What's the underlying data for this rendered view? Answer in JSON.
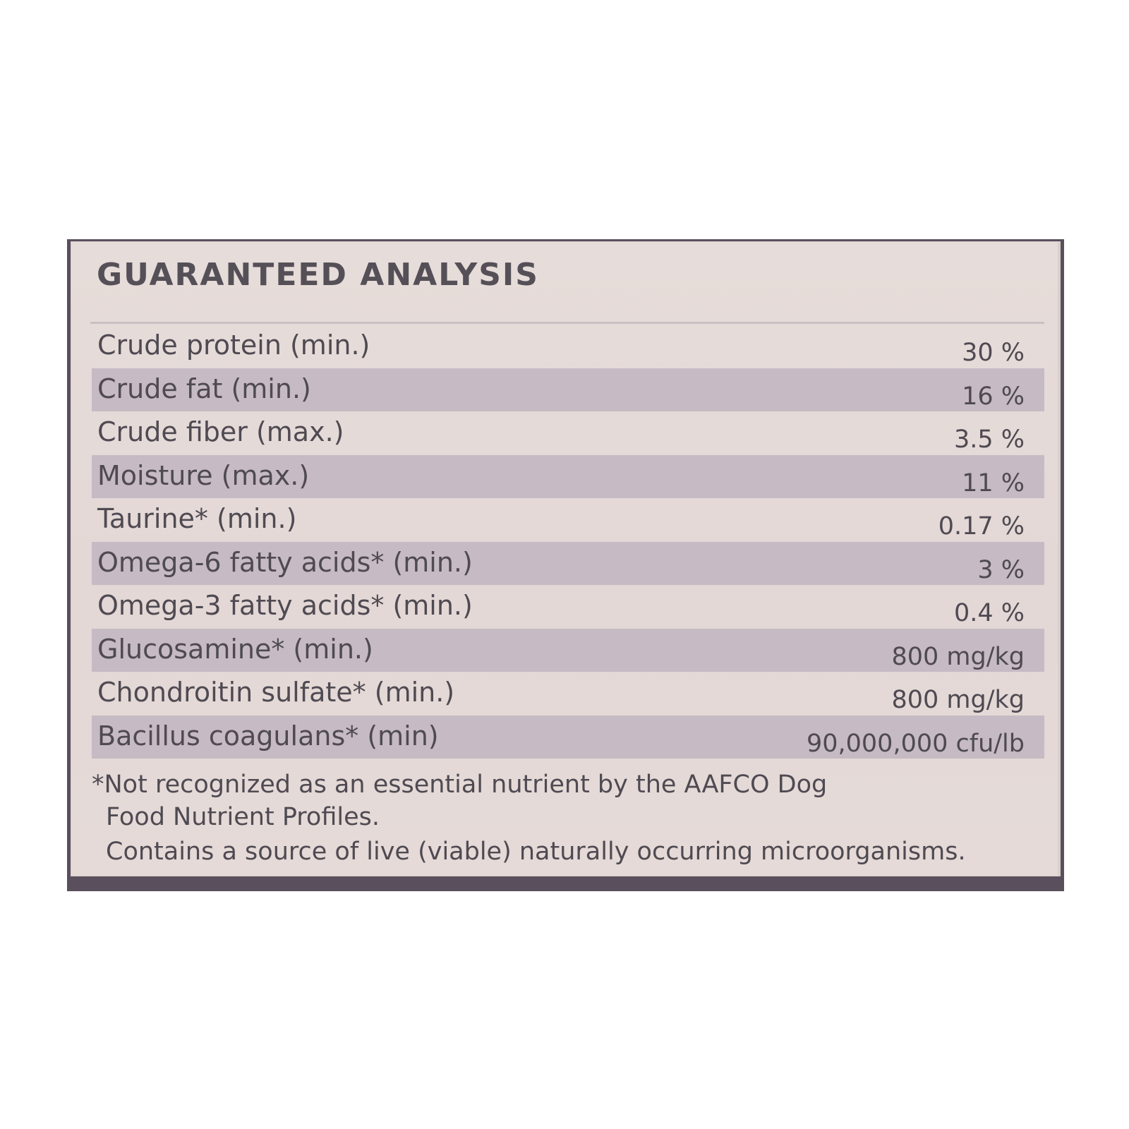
{
  "label": {
    "title": "GUARANTEED ANALYSIS",
    "rows": [
      {
        "name": "Crude protein (min.)",
        "value": "30 %"
      },
      {
        "name": "Crude fat (min.)",
        "value": "16 %"
      },
      {
        "name": "Crude fiber (max.)",
        "value": "3.5 %"
      },
      {
        "name": "Moisture (max.)",
        "value": "11 %"
      },
      {
        "name": "Taurine* (min.)",
        "value": "0.17 %"
      },
      {
        "name": "Omega-6 fatty acids* (min.)",
        "value": "3 %"
      },
      {
        "name": "Omega-3 fatty acids* (min.)",
        "value": "0.4 %"
      },
      {
        "name": "Glucosamine* (min.)",
        "value": "800 mg/kg"
      },
      {
        "name": "Chondroitin sulfate* (min.)",
        "value": "800 mg/kg"
      },
      {
        "name": "Bacillus coagulans* (min)",
        "value": "90,000,000 cfu/lb"
      }
    ],
    "footnotes": {
      "line1": "*Not recognized as an essential nutrient by the AAFCO Dog",
      "line2": "Food Nutrient Profiles.",
      "line3": "Contains a source of live (viable) naturally occurring microorganisms."
    }
  },
  "colors": {
    "panel": "#e4d9d7",
    "shaded_row": "#c6bac4",
    "text": "#4f4a52",
    "frame": "#5a4f5c"
  }
}
